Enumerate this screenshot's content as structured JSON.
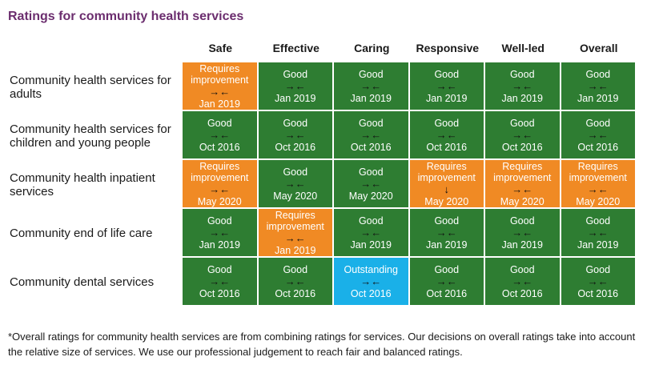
{
  "title": "Ratings for community health services",
  "columns": [
    "Safe",
    "Effective",
    "Caring",
    "Responsive",
    "Well-led",
    "Overall"
  ],
  "colors": {
    "good": "#2e7d32",
    "requires_improvement": "#f08a24",
    "outstanding": "#1ab0e8",
    "title": "#6b2d6e"
  },
  "rows": [
    {
      "label": "Community health services for adults",
      "cells": [
        {
          "rating": "Requires improvement",
          "type": "req",
          "trend": "→←",
          "date": "Jan 2019"
        },
        {
          "rating": "Good",
          "type": "good",
          "trend": "→←",
          "date": "Jan 2019"
        },
        {
          "rating": "Good",
          "type": "good",
          "trend": "→←",
          "date": "Jan 2019"
        },
        {
          "rating": "Good",
          "type": "good",
          "trend": "→←",
          "date": "Jan 2019"
        },
        {
          "rating": "Good",
          "type": "good",
          "trend": "→←",
          "date": "Jan 2019"
        },
        {
          "rating": "Good",
          "type": "good",
          "trend": "→←",
          "date": "Jan 2019"
        }
      ]
    },
    {
      "label": "Community health services for children and young people",
      "cells": [
        {
          "rating": "Good",
          "type": "good",
          "trend": "→←",
          "date": "Oct 2016"
        },
        {
          "rating": "Good",
          "type": "good",
          "trend": "→←",
          "date": "Oct 2016"
        },
        {
          "rating": "Good",
          "type": "good",
          "trend": "→←",
          "date": "Oct 2016"
        },
        {
          "rating": "Good",
          "type": "good",
          "trend": "→←",
          "date": "Oct 2016"
        },
        {
          "rating": "Good",
          "type": "good",
          "trend": "→←",
          "date": "Oct 2016"
        },
        {
          "rating": "Good",
          "type": "good",
          "trend": "→←",
          "date": "Oct 2016"
        }
      ]
    },
    {
      "label": "Community health inpatient services",
      "cells": [
        {
          "rating": "Requires improvement",
          "type": "req",
          "trend": "→←",
          "date": "May 2020"
        },
        {
          "rating": "Good",
          "type": "good",
          "trend": "→←",
          "date": "May 2020"
        },
        {
          "rating": "Good",
          "type": "good",
          "trend": "→←",
          "date": "May 2020"
        },
        {
          "rating": "Requires improvement",
          "type": "req",
          "trend": "↓",
          "date": "May 2020"
        },
        {
          "rating": "Requires improvement",
          "type": "req",
          "trend": "→←",
          "date": "May 2020"
        },
        {
          "rating": "Requires improvement",
          "type": "req",
          "trend": "→←",
          "date": "May 2020"
        }
      ]
    },
    {
      "label": "Community end of life care",
      "cells": [
        {
          "rating": "Good",
          "type": "good",
          "trend": "→←",
          "date": "Jan 2019"
        },
        {
          "rating": "Requires improvement",
          "type": "req",
          "trend": "→←",
          "date": "Jan 2019"
        },
        {
          "rating": "Good",
          "type": "good",
          "trend": "→←",
          "date": "Jan 2019"
        },
        {
          "rating": "Good",
          "type": "good",
          "trend": "→←",
          "date": "Jan 2019"
        },
        {
          "rating": "Good",
          "type": "good",
          "trend": "→←",
          "date": "Jan 2019"
        },
        {
          "rating": "Good",
          "type": "good",
          "trend": "→←",
          "date": "Jan 2019"
        }
      ]
    },
    {
      "label": "Community dental services",
      "cells": [
        {
          "rating": "Good",
          "type": "good",
          "trend": "→←",
          "date": "Oct 2016"
        },
        {
          "rating": "Good",
          "type": "good",
          "trend": "→←",
          "date": "Oct 2016"
        },
        {
          "rating": "Outstanding",
          "type": "out",
          "trend": "→←",
          "date": "Oct 2016"
        },
        {
          "rating": "Good",
          "type": "good",
          "trend": "→←",
          "date": "Oct 2016"
        },
        {
          "rating": "Good",
          "type": "good",
          "trend": "→←",
          "date": "Oct 2016"
        },
        {
          "rating": "Good",
          "type": "good",
          "trend": "→←",
          "date": "Oct 2016"
        }
      ]
    }
  ],
  "footnote": "*Overall ratings for community health services are from combining ratings for services. Our decisions on overall ratings take into account the relative size of services. We use our professional judgement to reach fair and balanced ratings."
}
